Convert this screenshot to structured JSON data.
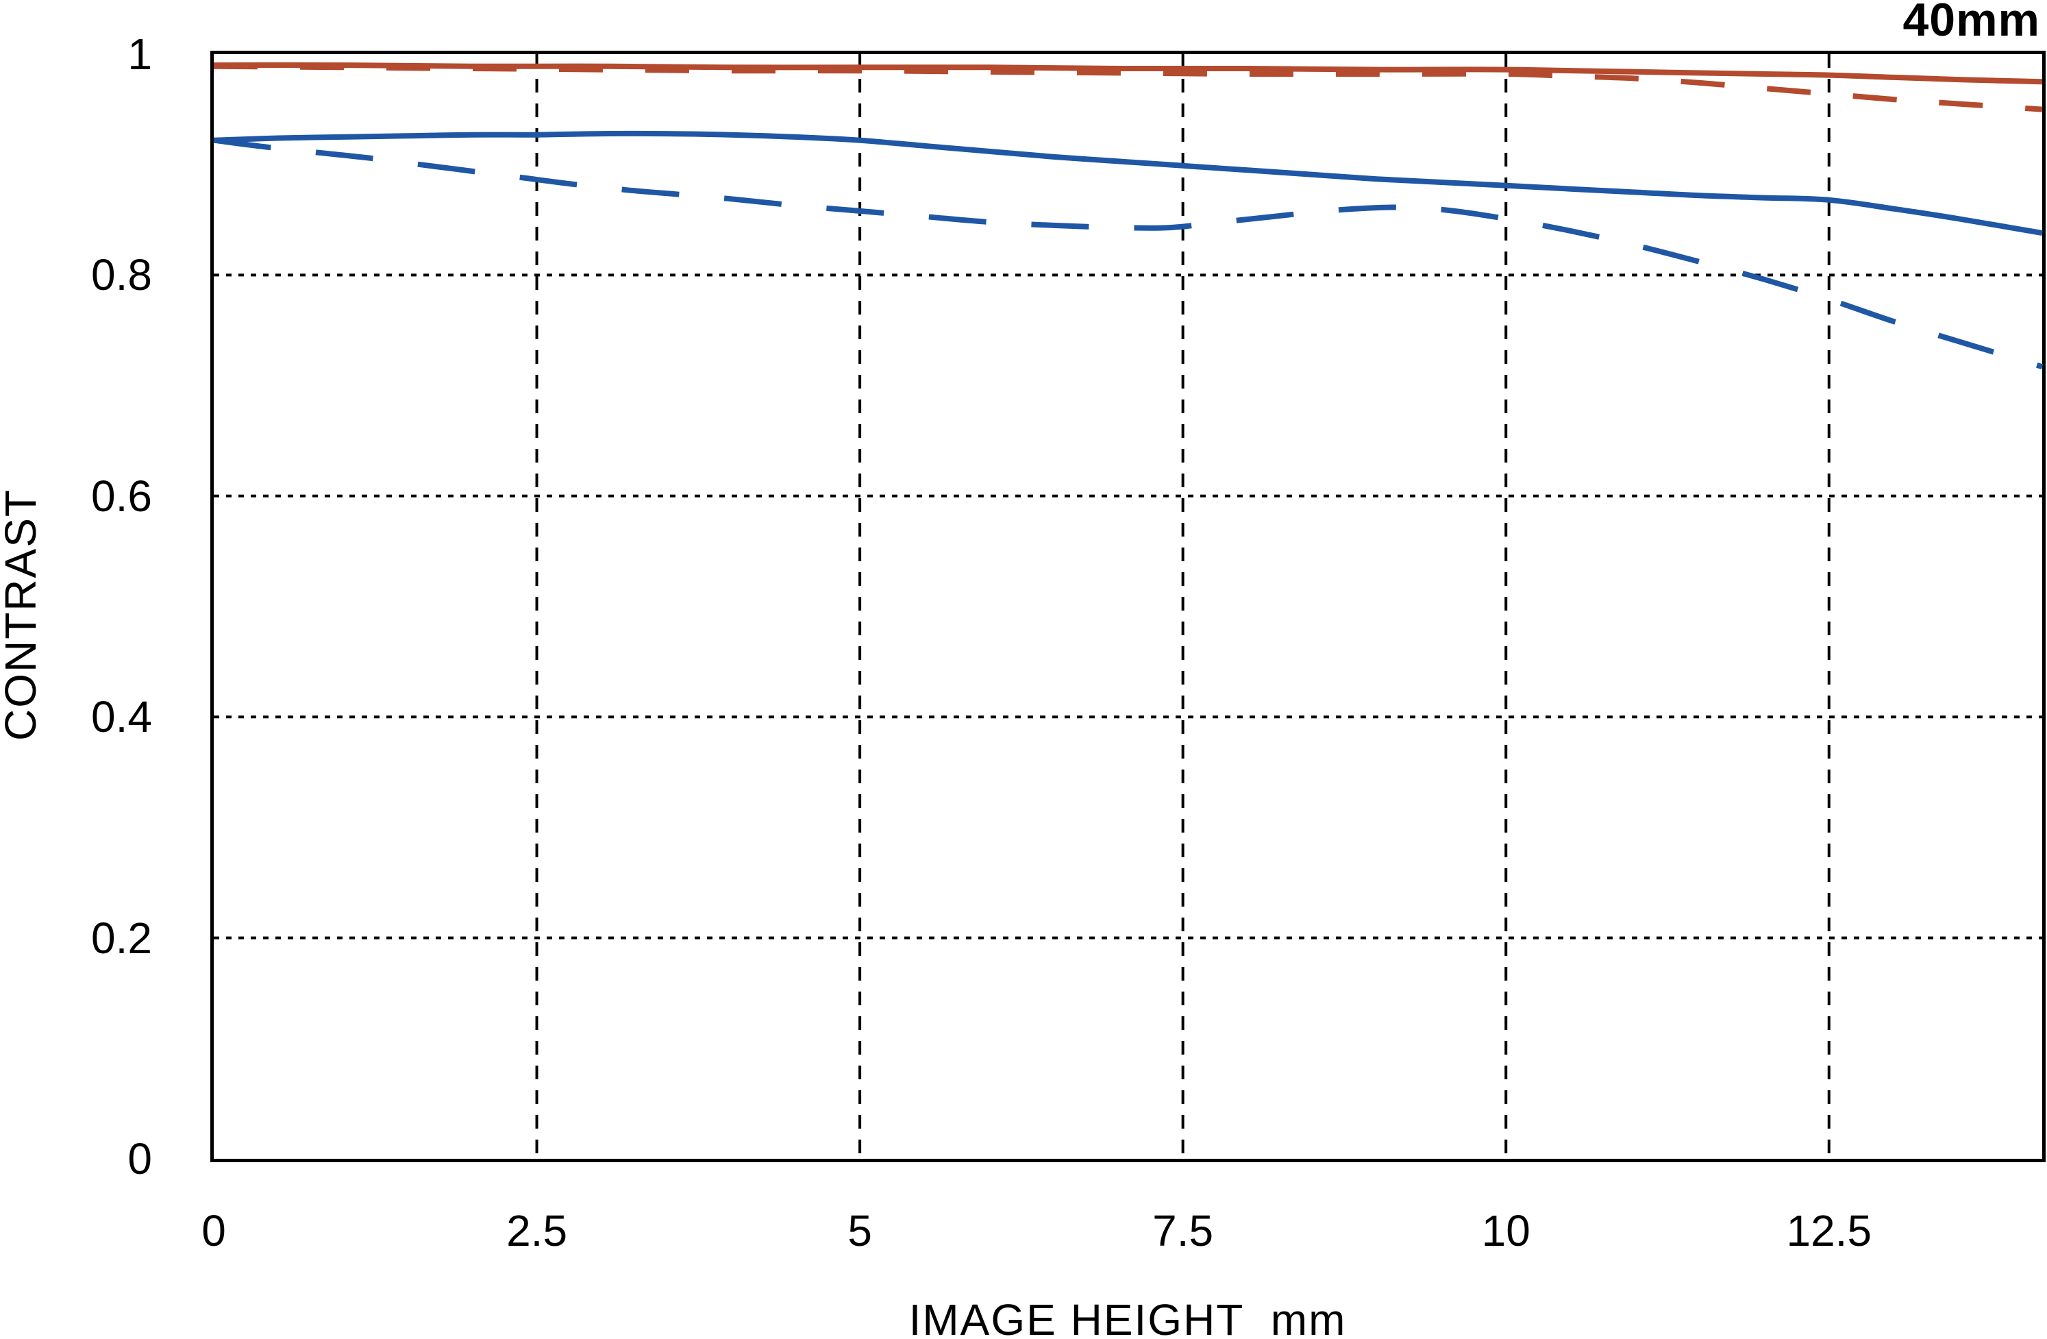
{
  "title": "40mm",
  "axes": {
    "x": {
      "label": "IMAGE HEIGHT  mm",
      "min": 0,
      "max": 14.15,
      "ticks": [
        {
          "value": 0,
          "label": "0"
        },
        {
          "value": 2.5,
          "label": "2.5"
        },
        {
          "value": 5,
          "label": "5"
        },
        {
          "value": 7.5,
          "label": "7.5"
        },
        {
          "value": 10,
          "label": "10"
        },
        {
          "value": 12.5,
          "label": "12.5"
        }
      ],
      "gridlines": [
        2.5,
        5,
        7.5,
        10,
        12.5
      ]
    },
    "y": {
      "label": "CONTRAST",
      "min": 0,
      "max": 1,
      "ticks": [
        {
          "value": 1,
          "label": "1"
        },
        {
          "value": 0.8,
          "label": "0.8"
        },
        {
          "value": 0.6,
          "label": "0.6"
        },
        {
          "value": 0.4,
          "label": "0.4"
        },
        {
          "value": 0.2,
          "label": "0.2"
        },
        {
          "value": 0,
          "label": "0"
        }
      ],
      "gridlines": [
        0.2,
        0.4,
        0.6,
        0.8
      ]
    }
  },
  "colors": {
    "red": "#b44a2e",
    "blue": "#1f57a5",
    "axis": "#000000"
  },
  "chart_data": {
    "type": "line",
    "title": "40mm",
    "xlabel": "IMAGE HEIGHT mm",
    "ylabel": "CONTRAST",
    "xlim": [
      0,
      14.15
    ],
    "ylim": [
      0,
      1
    ],
    "grid": true,
    "legend": "none",
    "series": [
      {
        "name": "red_solid",
        "color": "#b44a2e",
        "style": "solid",
        "points": [
          [
            0,
            0.99
          ],
          [
            1,
            0.99
          ],
          [
            2,
            0.989
          ],
          [
            3,
            0.989
          ],
          [
            4,
            0.988
          ],
          [
            5,
            0.988
          ],
          [
            6,
            0.988
          ],
          [
            7,
            0.987
          ],
          [
            8,
            0.987
          ],
          [
            9,
            0.986
          ],
          [
            10,
            0.986
          ],
          [
            11,
            0.984
          ],
          [
            12,
            0.982
          ],
          [
            12.5,
            0.981
          ],
          [
            13,
            0.979
          ],
          [
            13.5,
            0.977
          ],
          [
            14.15,
            0.975
          ]
        ]
      },
      {
        "name": "red_dashed",
        "color": "#b44a2e",
        "style": "dashed",
        "points": [
          [
            0,
            0.989
          ],
          [
            1,
            0.988
          ],
          [
            2,
            0.987
          ],
          [
            3,
            0.986
          ],
          [
            4,
            0.985
          ],
          [
            5,
            0.985
          ],
          [
            6,
            0.984
          ],
          [
            7,
            0.983
          ],
          [
            8,
            0.982
          ],
          [
            9,
            0.982
          ],
          [
            10,
            0.982
          ],
          [
            10.5,
            0.98
          ],
          [
            11,
            0.978
          ],
          [
            11.5,
            0.974
          ],
          [
            12,
            0.969
          ],
          [
            12.5,
            0.964
          ],
          [
            13,
            0.959
          ],
          [
            13.5,
            0.955
          ],
          [
            14.15,
            0.95
          ]
        ]
      },
      {
        "name": "blue_solid",
        "color": "#1f57a5",
        "style": "solid",
        "points": [
          [
            0,
            0.922
          ],
          [
            0.5,
            0.924
          ],
          [
            1,
            0.925
          ],
          [
            1.5,
            0.926
          ],
          [
            2,
            0.927
          ],
          [
            2.5,
            0.927
          ],
          [
            3,
            0.928
          ],
          [
            3.5,
            0.928
          ],
          [
            4,
            0.927
          ],
          [
            4.5,
            0.925
          ],
          [
            5,
            0.922
          ],
          [
            5.5,
            0.917
          ],
          [
            6,
            0.912
          ],
          [
            6.5,
            0.907
          ],
          [
            7,
            0.903
          ],
          [
            7.5,
            0.899
          ],
          [
            8,
            0.895
          ],
          [
            8.5,
            0.891
          ],
          [
            9,
            0.887
          ],
          [
            9.5,
            0.884
          ],
          [
            10,
            0.881
          ],
          [
            10.5,
            0.878
          ],
          [
            11,
            0.875
          ],
          [
            11.5,
            0.872
          ],
          [
            12,
            0.87
          ],
          [
            12.5,
            0.868
          ],
          [
            13,
            0.86
          ],
          [
            13.5,
            0.851
          ],
          [
            14.15,
            0.838
          ]
        ]
      },
      {
        "name": "blue_dashed",
        "color": "#1f57a5",
        "style": "dashed",
        "points": [
          [
            0,
            0.922
          ],
          [
            0.4,
            0.916
          ],
          [
            0.8,
            0.911
          ],
          [
            1.2,
            0.906
          ],
          [
            1.6,
            0.9
          ],
          [
            2,
            0.894
          ],
          [
            2.4,
            0.888
          ],
          [
            2.8,
            0.882
          ],
          [
            3.2,
            0.877
          ],
          [
            3.6,
            0.873
          ],
          [
            4,
            0.869
          ],
          [
            4.5,
            0.863
          ],
          [
            5,
            0.858
          ],
          [
            5.5,
            0.853
          ],
          [
            6,
            0.848
          ],
          [
            6.5,
            0.845
          ],
          [
            7,
            0.843
          ],
          [
            7.4,
            0.843
          ],
          [
            7.8,
            0.848
          ],
          [
            8.2,
            0.853
          ],
          [
            8.6,
            0.858
          ],
          [
            9,
            0.861
          ],
          [
            9.3,
            0.861
          ],
          [
            9.6,
            0.858
          ],
          [
            10,
            0.851
          ],
          [
            10.5,
            0.84
          ],
          [
            11,
            0.827
          ],
          [
            11.5,
            0.812
          ],
          [
            12,
            0.796
          ],
          [
            12.5,
            0.778
          ],
          [
            13,
            0.758
          ],
          [
            13.5,
            0.74
          ],
          [
            14.15,
            0.717
          ]
        ]
      }
    ]
  }
}
